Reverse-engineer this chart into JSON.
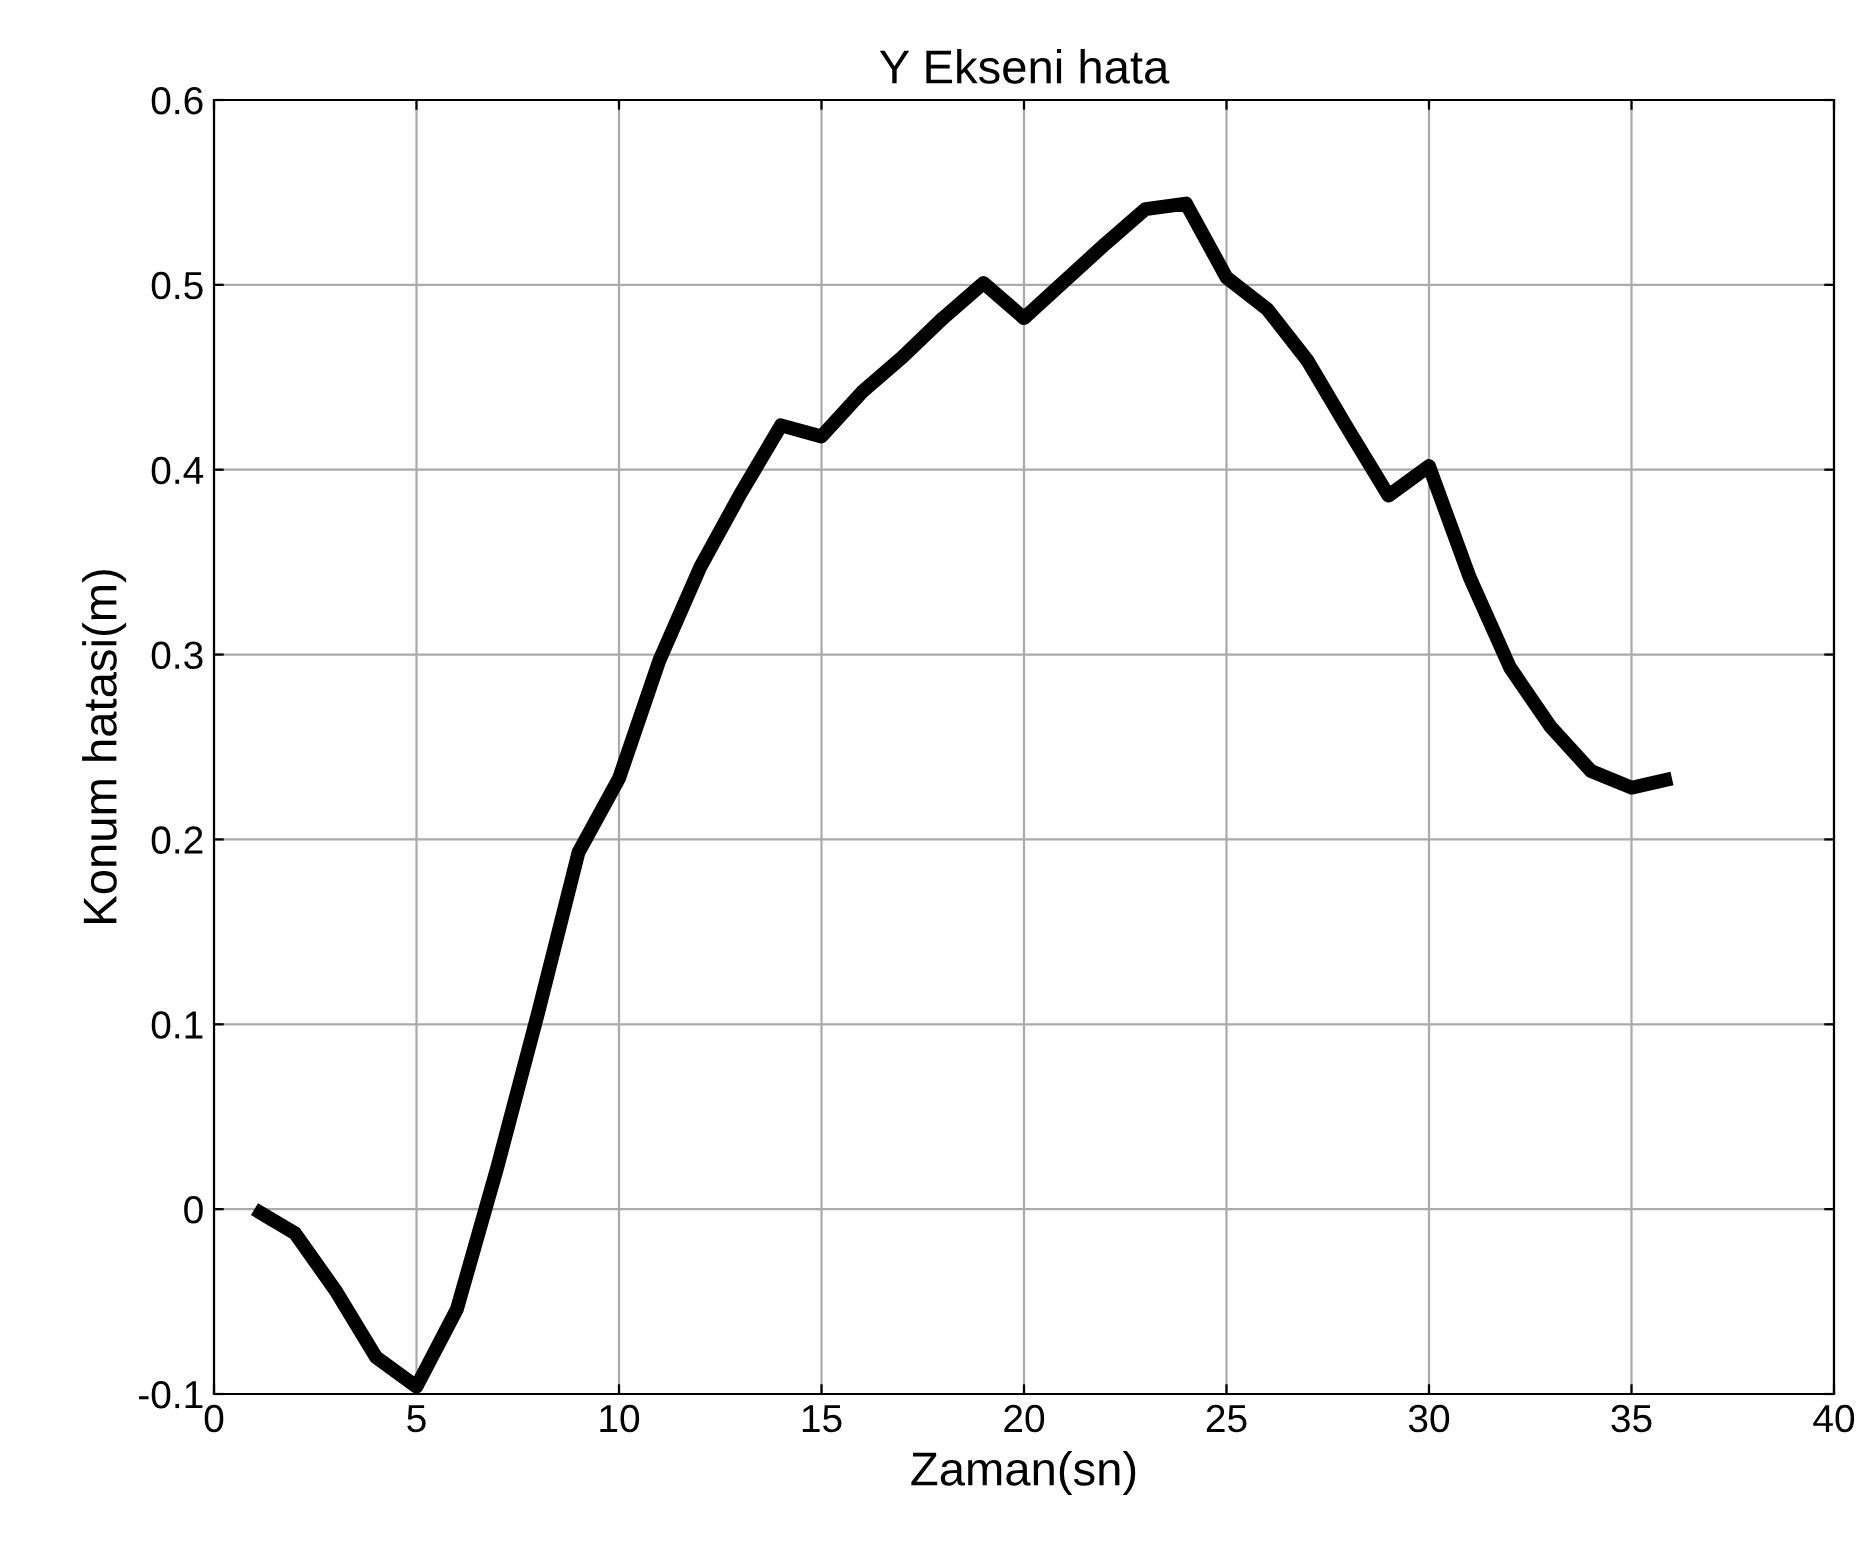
{
  "chart_data": {
    "type": "line",
    "title": "Y Ekseni hata",
    "xlabel": "Zaman(sn)",
    "ylabel": "Konum hatasi(m)",
    "x": [
      1,
      2,
      3,
      4,
      5,
      6,
      7,
      8,
      9,
      10,
      11,
      12,
      13,
      14,
      15,
      16,
      17,
      18,
      19,
      20,
      21,
      22,
      23,
      24,
      25,
      26,
      27,
      28,
      29,
      30,
      31,
      32,
      33,
      34,
      35,
      36
    ],
    "series": [
      {
        "color": "#000000",
        "values": [
          0,
          -0.013,
          -0.044,
          -0.08,
          -0.096,
          -0.054,
          0.023,
          0.106,
          0.193,
          0.233,
          0.297,
          0.347,
          0.387,
          0.424,
          0.418,
          0.442,
          0.461,
          0.482,
          0.501,
          0.482,
          0.502,
          0.522,
          0.541,
          0.544,
          0.504,
          0.487,
          0.459,
          0.422,
          0.386,
          0.402,
          0.342,
          0.293,
          0.261,
          0.237,
          0.228,
          0.233
        ]
      }
    ],
    "xlim": [
      0,
      40
    ],
    "xticks": [
      0,
      5,
      10,
      15,
      20,
      25,
      30,
      35,
      40
    ],
    "ylim": [
      -0.1,
      0.6
    ],
    "yticks": [
      -0.1,
      0,
      0.1,
      0.2,
      0.3,
      0.4,
      0.5,
      0.6
    ],
    "grid": true,
    "marker": "none",
    "line_style": "solid"
  }
}
